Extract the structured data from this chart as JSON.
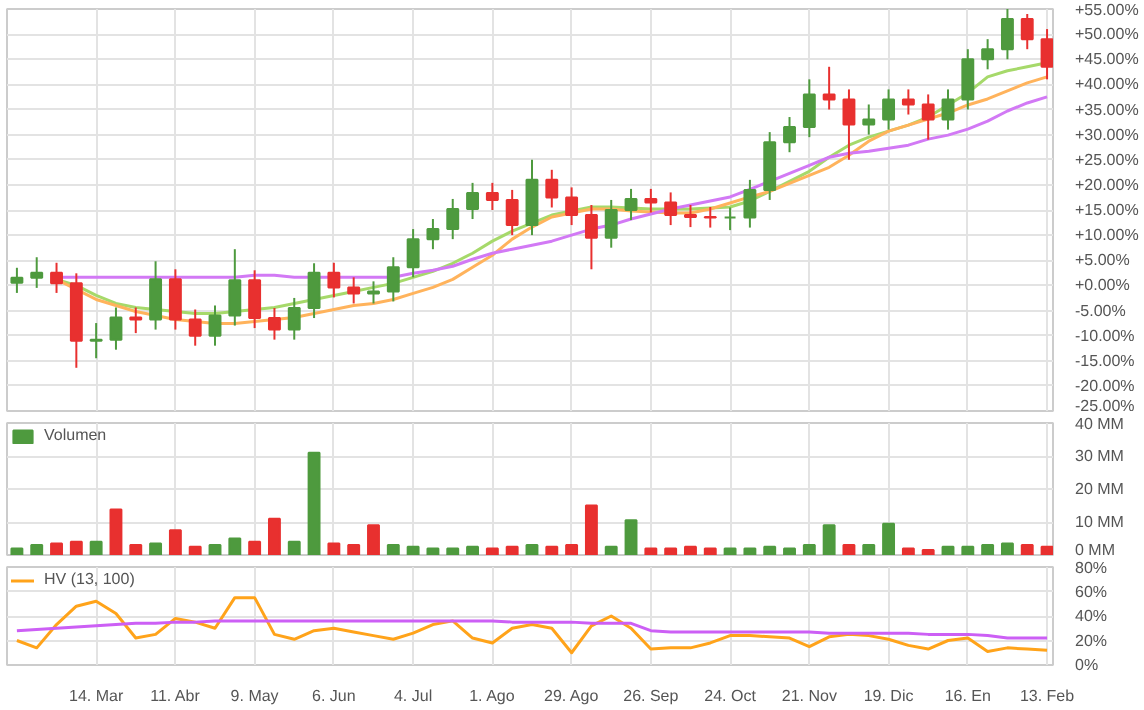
{
  "chart_data": [
    {
      "type": "candlestick",
      "categories": [
        null,
        null,
        null,
        null,
        null,
        null,
        null,
        null,
        null,
        null,
        null,
        null,
        null,
        null,
        null,
        null,
        null,
        null,
        null,
        null,
        null,
        null,
        null,
        null,
        null,
        null,
        null,
        null,
        null,
        null,
        null,
        null,
        null,
        null,
        null,
        null,
        null,
        null,
        null,
        null,
        null,
        null,
        null,
        null,
        null,
        null,
        null,
        null,
        null,
        null,
        null,
        null,
        null
      ],
      "ohlc": [
        [
          0.5,
          3.5,
          -1.5,
          1.5
        ],
        [
          1.5,
          5.6,
          -0.5,
          2.5
        ],
        [
          2.5,
          4.5,
          -1.5,
          0.4
        ],
        [
          0.4,
          2.4,
          -16.4,
          -11
        ],
        [
          -11,
          -7.5,
          -14.5,
          -10.8
        ],
        [
          -10.8,
          -4.4,
          -12.8,
          -6.4
        ],
        [
          -6.4,
          -4.4,
          -9.5,
          -6.8
        ],
        [
          -6.8,
          4.8,
          -8.8,
          1.2
        ],
        [
          1.2,
          3.2,
          -8.8,
          -6.8
        ],
        [
          -6.8,
          -4.8,
          -12,
          -10
        ],
        [
          -10,
          -4,
          -12,
          -6
        ],
        [
          -6,
          7.2,
          -8,
          1
        ],
        [
          1,
          3,
          -8.5,
          -6.5
        ],
        [
          -6.5,
          -4.5,
          -10.8,
          -8.8
        ],
        [
          -8.8,
          -2.5,
          -10.8,
          -4.5
        ],
        [
          -4.5,
          4.4,
          -6.5,
          2.5
        ],
        [
          2.5,
          4.5,
          -2.4,
          -0.4
        ],
        [
          -0.4,
          1.6,
          -3.6,
          -1.6
        ],
        [
          -1.6,
          0.8,
          -3.6,
          -1.2
        ],
        [
          -1.2,
          5.6,
          -3.2,
          3.6
        ],
        [
          3.6,
          11.2,
          1.6,
          9.2
        ],
        [
          9.2,
          13.2,
          7.2,
          11.2
        ],
        [
          11.2,
          17.2,
          9.2,
          15.2
        ],
        [
          15.2,
          20.4,
          13.2,
          18.4
        ],
        [
          18.4,
          20.4,
          15,
          17
        ],
        [
          17,
          19,
          10,
          12
        ],
        [
          12,
          25,
          10,
          21
        ],
        [
          21,
          23,
          15.5,
          17.5
        ],
        [
          17.5,
          19.5,
          12,
          14
        ],
        [
          14,
          16,
          3.2,
          9.5
        ],
        [
          9.5,
          17,
          7.5,
          15
        ],
        [
          15,
          19.2,
          13,
          17.2
        ],
        [
          17.2,
          19.2,
          14.5,
          16.5
        ],
        [
          16.5,
          18.5,
          12,
          14
        ],
        [
          14,
          16,
          11.6,
          13.6
        ],
        [
          13.6,
          15.6,
          11.5,
          13.5
        ],
        [
          13.5,
          15.5,
          11,
          13.5
        ],
        [
          13.5,
          21,
          11.5,
          19
        ],
        [
          19,
          30.5,
          17,
          28.5
        ],
        [
          28.5,
          33.5,
          26.5,
          31.5
        ],
        [
          31.5,
          41,
          29.5,
          38
        ],
        [
          38,
          43.5,
          35,
          37
        ],
        [
          37,
          39,
          25,
          32
        ],
        [
          32,
          36,
          30,
          33
        ],
        [
          33,
          39,
          31,
          37
        ],
        [
          37,
          39,
          34,
          36
        ],
        [
          36,
          38,
          29,
          33
        ],
        [
          33,
          39,
          31,
          37
        ],
        [
          37,
          47,
          35,
          45
        ],
        [
          45,
          49,
          43,
          47
        ],
        [
          47,
          55,
          45,
          53
        ],
        [
          53,
          54,
          47,
          49
        ],
        [
          49,
          51,
          41,
          43.5
        ]
      ],
      "colors": [
        "#4e9a3e",
        "#4e9a3e",
        "#e8302f",
        "#e8302f",
        "#4e9a3e",
        "#4e9a3e",
        "#e8302f",
        "#4e9a3e",
        "#e8302f",
        "#e8302f",
        "#4e9a3e",
        "#4e9a3e",
        "#e8302f",
        "#e8302f",
        "#4e9a3e",
        "#4e9a3e",
        "#e8302f",
        "#e8302f",
        "#4e9a3e",
        "#4e9a3e",
        "#4e9a3e",
        "#4e9a3e",
        "#4e9a3e",
        "#4e9a3e",
        "#e8302f",
        "#e8302f",
        "#4e9a3e",
        "#e8302f",
        "#e8302f",
        "#e8302f",
        "#4e9a3e",
        "#4e9a3e",
        "#e8302f",
        "#e8302f",
        "#e8302f",
        "#e8302f",
        "#4e9a3e",
        "#4e9a3e",
        "#4e9a3e",
        "#4e9a3e",
        "#4e9a3e",
        "#e8302f",
        "#e8302f",
        "#4e9a3e",
        "#4e9a3e",
        "#e8302f",
        "#e8302f",
        "#4e9a3e",
        "#4e9a3e",
        "#4e9a3e",
        "#4e9a3e",
        "#e8302f",
        "#e8302f"
      ],
      "series": [
        {
          "type": "line",
          "color": "#a6d96a",
          "values": [
            null,
            null,
            1.2,
            0,
            -2,
            -3.6,
            -4.4,
            -4.8,
            -5.2,
            -5.6,
            -5.6,
            -5.2,
            -4.8,
            -4.4,
            -3.6,
            -2.8,
            -2,
            -1.2,
            -0.4,
            0.4,
            1.6,
            2.8,
            4.4,
            6.4,
            8.8,
            10.8,
            12.4,
            14,
            14.8,
            15.6,
            15.6,
            15.4,
            15.2,
            15.2,
            15.2,
            15.4,
            15.6,
            16.8,
            18.7,
            20.7,
            22.7,
            25.5,
            27.9,
            29.5,
            30.7,
            31.9,
            33.5,
            35.9,
            38.3,
            41.5,
            42.7,
            43.5,
            44.3
          ]
        },
        {
          "type": "line",
          "color": "#ffb35c",
          "values": [
            null,
            null,
            1.2,
            -0.8,
            -2.8,
            -4,
            -5.2,
            -6,
            -6.8,
            -7.2,
            -7.6,
            -7.6,
            -7.2,
            -6.8,
            -6.4,
            -5.6,
            -4.8,
            -4,
            -3.6,
            -2.8,
            -1.6,
            -0.4,
            1.2,
            3.6,
            6,
            9.2,
            11.6,
            13.6,
            14.4,
            15.2,
            15.2,
            14.8,
            14.6,
            14.4,
            14.4,
            15.2,
            16.4,
            17.6,
            18.7,
            20.3,
            21.9,
            23.5,
            25.9,
            28.7,
            30.7,
            31.9,
            33.1,
            34.3,
            35.9,
            37.1,
            38.7,
            40.3,
            41.5
          ]
        },
        {
          "type": "line",
          "color": "#d279f5",
          "values": [
            null,
            null,
            1.6,
            1.6,
            1.6,
            1.6,
            1.6,
            1.6,
            1.6,
            1.6,
            1.6,
            1.6,
            2,
            2,
            1.6,
            1.6,
            1.6,
            1.6,
            1.6,
            1.6,
            2.4,
            3,
            3.8,
            5.2,
            6.4,
            7.2,
            8,
            8.8,
            10,
            11.2,
            12,
            13.2,
            14.2,
            15.2,
            16,
            16.8,
            17.6,
            19.1,
            20.7,
            22.3,
            23.9,
            25.5,
            26.3,
            26.7,
            27.3,
            27.9,
            29.1,
            29.9,
            31.1,
            32.7,
            34.7,
            36.3,
            37.5
          ]
        }
      ],
      "ylim": [
        -25,
        55
      ],
      "yticks": [
        {
          "value": -25,
          "label": "-25.00%"
        },
        {
          "value": -20,
          "label": "-20.00%"
        },
        {
          "value": -15,
          "label": "-15.00%"
        },
        {
          "value": -10,
          "label": "-10.00%"
        },
        {
          "value": -5,
          "label": "-5.00%"
        },
        {
          "value": 0,
          "label": "+0.00%"
        },
        {
          "value": 5,
          "label": "+5.00%"
        },
        {
          "value": 10,
          "label": "+10.00%"
        },
        {
          "value": 15,
          "label": "+15.00%"
        },
        {
          "value": 20,
          "label": "+20.00%"
        },
        {
          "value": 25,
          "label": "+25.00%"
        },
        {
          "value": 30,
          "label": "+30.00%"
        },
        {
          "value": 35,
          "label": "+35.00%"
        },
        {
          "value": 40,
          "label": "+40.00%"
        },
        {
          "value": 45,
          "label": "+45.00%"
        },
        {
          "value": 50,
          "label": "+50.00%"
        },
        {
          "value": 55,
          "label": "+55.00%"
        }
      ],
      "grid": true,
      "tick_labels": "y"
    },
    {
      "type": "bar",
      "categories": [
        null,
        null,
        null,
        null,
        null,
        null,
        null,
        null,
        null,
        null,
        null,
        null,
        null,
        null,
        null,
        null,
        null,
        null,
        null,
        null,
        null,
        null,
        null,
        null,
        null,
        null,
        null,
        null,
        null,
        null,
        null,
        null,
        null,
        null,
        null,
        null,
        null,
        null,
        null,
        null,
        null,
        null,
        null,
        null,
        null,
        null,
        null,
        null,
        null,
        null,
        null,
        null,
        null
      ],
      "series": [
        {
          "name": "Volumen",
          "values": [
            2,
            3,
            3.5,
            4,
            4,
            13.8,
            3,
            3.5,
            7.5,
            2.5,
            3,
            5,
            4,
            11,
            4,
            31,
            3.5,
            3,
            9,
            3,
            2.5,
            2,
            2,
            2.5,
            2,
            2.5,
            3,
            2.5,
            3,
            15,
            2.5,
            10.5,
            2,
            2,
            2.5,
            2,
            2,
            2,
            2.5,
            2,
            3,
            9,
            3,
            3,
            9.5,
            2,
            1.5,
            2.5,
            2.5,
            3,
            3.5,
            3,
            2.5
          ],
          "colors": [
            "#4e9a3e",
            "#4e9a3e",
            "#e8302f",
            "#e8302f",
            "#4e9a3e",
            "#e8302f",
            "#e8302f",
            "#4e9a3e",
            "#e8302f",
            "#e8302f",
            "#4e9a3e",
            "#4e9a3e",
            "#e8302f",
            "#e8302f",
            "#4e9a3e",
            "#4e9a3e",
            "#e8302f",
            "#e8302f",
            "#e8302f",
            "#4e9a3e",
            "#4e9a3e",
            "#4e9a3e",
            "#4e9a3e",
            "#4e9a3e",
            "#e8302f",
            "#e8302f",
            "#4e9a3e",
            "#e8302f",
            "#e8302f",
            "#e8302f",
            "#4e9a3e",
            "#4e9a3e",
            "#e8302f",
            "#e8302f",
            "#e8302f",
            "#e8302f",
            "#4e9a3e",
            "#4e9a3e",
            "#4e9a3e",
            "#4e9a3e",
            "#4e9a3e",
            "#4e9a3e",
            "#e8302f",
            "#4e9a3e",
            "#4e9a3e",
            "#e8302f",
            "#e8302f",
            "#4e9a3e",
            "#4e9a3e",
            "#4e9a3e",
            "#4e9a3e",
            "#e8302f",
            "#e8302f"
          ]
        }
      ],
      "ylim": [
        0,
        40
      ],
      "yticks": [
        {
          "value": 0,
          "label": "0 MM"
        },
        {
          "value": 10,
          "label": "10 MM"
        },
        {
          "value": 20,
          "label": "20 MM"
        },
        {
          "value": 30,
          "label": "30 MM"
        },
        {
          "value": 40,
          "label": "40 MM"
        }
      ],
      "grid": true,
      "tick_labels": "y",
      "legend": "top left"
    },
    {
      "type": "line",
      "categories": [
        null,
        null,
        null,
        null,
        "14. Mar",
        null,
        null,
        null,
        "11. Abr",
        null,
        null,
        null,
        "9. May",
        null,
        null,
        null,
        "6. Jun",
        null,
        null,
        null,
        "4. Jul",
        null,
        null,
        null,
        "1. Ago",
        null,
        null,
        null,
        "29. Ago",
        null,
        null,
        null,
        "26. Sep",
        null,
        null,
        null,
        "24. Oct",
        null,
        null,
        null,
        "21. Nov",
        null,
        null,
        null,
        "19. Dic",
        null,
        null,
        null,
        "16. En",
        null,
        null,
        null,
        "13. Feb"
      ],
      "series": [
        {
          "name": "HV (13, 100)",
          "color": "#ffa31a",
          "values": [
            20,
            14,
            33,
            48,
            52,
            42,
            22,
            25,
            38,
            35,
            30,
            55,
            55,
            25,
            21,
            28,
            30,
            27,
            24,
            21,
            26,
            33,
            36,
            22,
            18,
            30,
            33,
            30,
            10,
            32,
            40,
            30,
            13,
            14,
            14,
            18,
            24,
            24,
            23,
            22,
            15,
            23,
            25,
            24,
            21,
            16,
            13,
            20,
            22,
            11,
            14,
            13,
            12
          ]
        },
        {
          "color": "#cc5ff5",
          "values": [
            28,
            29,
            30,
            31,
            32,
            33,
            34,
            34,
            35,
            35,
            36,
            36,
            36,
            36,
            36,
            36,
            36,
            36,
            36,
            36,
            36,
            36,
            36,
            36,
            36,
            35,
            35,
            35,
            35,
            34,
            34,
            34,
            28,
            27,
            27,
            27,
            27,
            27,
            27,
            27,
            27,
            26,
            26,
            26,
            26,
            26,
            25,
            25,
            25,
            24,
            22,
            22,
            22
          ]
        }
      ],
      "ylim": [
        0,
        80
      ],
      "yticks": [
        {
          "value": 0,
          "label": "0%"
        },
        {
          "value": 20,
          "label": "20%"
        },
        {
          "value": 40,
          "label": "40%"
        },
        {
          "value": 60,
          "label": "60%"
        },
        {
          "value": 80,
          "label": "80%"
        }
      ],
      "grid": true,
      "legend": "top left"
    }
  ]
}
